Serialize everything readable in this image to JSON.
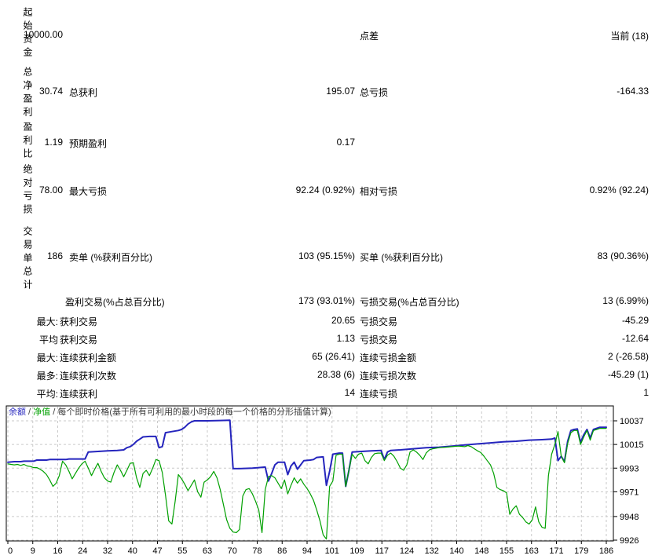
{
  "report": {
    "side_labels": [
      "起始资金",
      "总净盈利",
      "盈利比",
      "绝对亏损",
      "交易单总计"
    ],
    "rows": [
      {
        "v1": "10000.00",
        "l2": "点差",
        "v3": "当前 (18)"
      },
      {
        "v1": "30.74",
        "l1": "总获利",
        "v2": "195.07",
        "l2": "总亏损",
        "v3": "-164.33"
      },
      {
        "v1": "1.19",
        "l1": "预期盈利",
        "v2": "0.17"
      },
      {
        "v1": "78.00",
        "l1": "最大亏损",
        "v2": "92.24 (0.92%)",
        "l2": "相对亏损",
        "v3": "0.92% (92.24)"
      },
      {
        "v1": "186",
        "l1": "卖单 (%获利百分比)",
        "v2": "103 (95.15%)",
        "l2": "买单 (%获利百分比)",
        "v3": "83 (90.36%)"
      },
      {
        "l1": "盈利交易(%占总百分比)",
        "v2": "173 (93.01%)",
        "l2": "亏损交易(%占总百分比)",
        "v3": "13 (6.99%)"
      },
      {
        "p": "最大:",
        "l1": "获利交易",
        "v2": "20.65",
        "l2": "亏损交易",
        "v3": "-45.29"
      },
      {
        "p": "平均",
        "l1": "获利交易",
        "v2": "1.13",
        "l2": "亏损交易",
        "v3": "-12.64"
      },
      {
        "p": "最大:",
        "l1": "连续获利金额",
        "v2": "65 (26.41)",
        "l2": "连续亏损金额",
        "v3": "2 (-26.58)"
      },
      {
        "p": "最多:",
        "l1": "连续获利次数",
        "v2": "28.38 (6)",
        "l2": "连续亏损次数",
        "v3": "-45.29 (1)"
      },
      {
        "p": "平均:",
        "l1": "连续获利",
        "v2": "14",
        "l2": "连续亏损",
        "v3": "1"
      }
    ]
  },
  "chart_data": {
    "type": "line",
    "legend": {
      "balance": "余额",
      "sep": " / ",
      "equity": "净值",
      "caption": "每个即时价格(基于所有可利用的最小时段的每一个价格的分形插值计算)"
    },
    "grid": true,
    "grid_color": "#c9c9c9",
    "y_ticks": [
      10037,
      10015,
      9993,
      9971,
      9948,
      9926
    ],
    "x_ticks": [
      0,
      9,
      16,
      24,
      32,
      40,
      47,
      55,
      63,
      70,
      78,
      86,
      94,
      101,
      109,
      117,
      124,
      132,
      140,
      148,
      155,
      163,
      171,
      179,
      186
    ],
    "xlim": [
      0,
      186
    ],
    "ylim": [
      9925,
      10051
    ],
    "series": [
      {
        "name": "余额",
        "color": "#2525bd",
        "width": 2,
        "points": [
          [
            0,
            9998.5
          ],
          [
            2,
            9999
          ],
          [
            4,
            9999
          ],
          [
            5,
            9999.5
          ],
          [
            8,
            9999.5
          ],
          [
            9,
            10000.5
          ],
          [
            12,
            10000.5
          ],
          [
            13,
            10001
          ],
          [
            18,
            10001
          ],
          [
            19,
            10001.5
          ],
          [
            24,
            10001.5
          ],
          [
            25,
            10008
          ],
          [
            28,
            10008.5
          ],
          [
            31,
            10009
          ],
          [
            34,
            10009.5
          ],
          [
            36,
            10010
          ],
          [
            37,
            10012
          ],
          [
            38,
            10013
          ],
          [
            39,
            10015
          ],
          [
            40,
            10018
          ],
          [
            41,
            10020
          ],
          [
            42,
            10022
          ],
          [
            44,
            10022.5
          ],
          [
            46,
            10022.5
          ],
          [
            47,
            10012
          ],
          [
            48,
            10013
          ],
          [
            49,
            10026
          ],
          [
            51,
            10027
          ],
          [
            53,
            10028
          ],
          [
            54,
            10029
          ],
          [
            55,
            10031
          ],
          [
            56,
            10034
          ],
          [
            57,
            10036
          ],
          [
            58,
            10037
          ],
          [
            62,
            10037
          ],
          [
            66,
            10037.3
          ],
          [
            69,
            10037.5
          ],
          [
            70,
            9992.5
          ],
          [
            72,
            9992.5
          ],
          [
            76,
            9993
          ],
          [
            78,
            9993.5
          ],
          [
            80,
            9994
          ],
          [
            81,
            9981
          ],
          [
            82,
            9988
          ],
          [
            83,
            9996
          ],
          [
            84,
            9998.5
          ],
          [
            86,
            9998.5
          ],
          [
            87,
            9987
          ],
          [
            88,
            9995
          ],
          [
            89,
            9998.5
          ],
          [
            90,
            9992
          ],
          [
            91,
            9996
          ],
          [
            92,
            10000
          ],
          [
            94,
            10000.5
          ],
          [
            95,
            10001
          ],
          [
            96,
            10003
          ],
          [
            98,
            10003.5
          ],
          [
            99,
            9977
          ],
          [
            100,
            9990
          ],
          [
            101,
            10006
          ],
          [
            103,
            10007
          ],
          [
            104,
            10007
          ],
          [
            105,
            9976
          ],
          [
            106,
            9991
          ],
          [
            107,
            10008
          ],
          [
            110,
            10008.5
          ],
          [
            113,
            10009
          ],
          [
            116,
            10009.5
          ],
          [
            117,
            10001
          ],
          [
            118,
            10008
          ],
          [
            119,
            10009.5
          ],
          [
            122,
            10010
          ],
          [
            126,
            10011
          ],
          [
            130,
            10012
          ],
          [
            134,
            10012.5
          ],
          [
            138,
            10013.5
          ],
          [
            142,
            10014.5
          ],
          [
            146,
            10015.5
          ],
          [
            150,
            10016.5
          ],
          [
            154,
            10017.5
          ],
          [
            158,
            10018
          ],
          [
            162,
            10019
          ],
          [
            166,
            10019.5
          ],
          [
            169,
            10020
          ],
          [
            170,
            10021
          ],
          [
            171,
            10000
          ],
          [
            172,
            10004
          ],
          [
            173,
            9999
          ],
          [
            174,
            10018
          ],
          [
            175,
            10028
          ],
          [
            176,
            10029
          ],
          [
            177,
            10029.5
          ],
          [
            178,
            10017
          ],
          [
            179,
            10024
          ],
          [
            180,
            10029
          ],
          [
            181,
            10021
          ],
          [
            182,
            10029
          ],
          [
            183,
            10030
          ],
          [
            184,
            10031
          ],
          [
            185,
            10031
          ],
          [
            186,
            10031
          ]
        ]
      },
      {
        "name": "净值",
        "color": "#00a000",
        "width": 1.2,
        "points": [
          [
            0,
            9997
          ],
          [
            1,
            9996.5
          ],
          [
            2,
            9996
          ],
          [
            3,
            9996.5
          ],
          [
            4,
            9995.5
          ],
          [
            5,
            9996.5
          ],
          [
            6,
            9995
          ],
          [
            7,
            9994.5
          ],
          [
            8,
            9993.5
          ],
          [
            9,
            9993.5
          ],
          [
            10,
            9992
          ],
          [
            11,
            9990
          ],
          [
            12,
            9987
          ],
          [
            13,
            9982
          ],
          [
            14,
            9976
          ],
          [
            15,
            9979
          ],
          [
            16,
            9986
          ],
          [
            17,
            9999.5
          ],
          [
            18,
            9996
          ],
          [
            19,
            9990
          ],
          [
            20,
            9983
          ],
          [
            21,
            9988
          ],
          [
            22,
            9993
          ],
          [
            23,
            9997
          ],
          [
            24,
            9999.5
          ],
          [
            25,
            9993
          ],
          [
            26,
            9986
          ],
          [
            27,
            9992
          ],
          [
            28,
            9997.5
          ],
          [
            29,
            9990
          ],
          [
            30,
            9984
          ],
          [
            31,
            9981
          ],
          [
            32,
            9980
          ],
          [
            33,
            9989
          ],
          [
            34,
            9996
          ],
          [
            35,
            9991
          ],
          [
            36,
            9985
          ],
          [
            37,
            9991
          ],
          [
            38,
            9997.5
          ],
          [
            39,
            9998
          ],
          [
            40,
            9984
          ],
          [
            41,
            9975
          ],
          [
            42,
            9988
          ],
          [
            43,
            9991
          ],
          [
            44,
            9986
          ],
          [
            45,
            9993
          ],
          [
            46,
            10001
          ],
          [
            47,
            10000
          ],
          [
            48,
            9989
          ],
          [
            49,
            9968
          ],
          [
            50,
            9944
          ],
          [
            51,
            9941
          ],
          [
            52,
            9962
          ],
          [
            53,
            9987
          ],
          [
            54,
            9983
          ],
          [
            55,
            9978
          ],
          [
            56,
            9972
          ],
          [
            57,
            9977
          ],
          [
            58,
            9982
          ],
          [
            59,
            9971
          ],
          [
            60,
            9966
          ],
          [
            61,
            9980
          ],
          [
            62,
            9982
          ],
          [
            63,
            9985
          ],
          [
            64,
            9990
          ],
          [
            65,
            9984
          ],
          [
            66,
            9973
          ],
          [
            67,
            9959
          ],
          [
            68,
            9945
          ],
          [
            69,
            9937
          ],
          [
            70,
            9933.5
          ],
          [
            71,
            9933
          ],
          [
            72,
            9936
          ],
          [
            73,
            9967
          ],
          [
            74,
            9973
          ],
          [
            75,
            9974
          ],
          [
            76,
            9969
          ],
          [
            77,
            9962
          ],
          [
            78,
            9954
          ],
          [
            79,
            9933
          ],
          [
            80,
            9973
          ],
          [
            81,
            9985
          ],
          [
            82,
            9986
          ],
          [
            83,
            9984
          ],
          [
            84,
            9979
          ],
          [
            85,
            9974
          ],
          [
            86,
            9982
          ],
          [
            87,
            9969
          ],
          [
            88,
            9977
          ],
          [
            89,
            9984
          ],
          [
            90,
            9979
          ],
          [
            91,
            9983
          ],
          [
            92,
            9978
          ],
          [
            93,
            9974
          ],
          [
            94,
            9969
          ],
          [
            95,
            9963
          ],
          [
            96,
            9954
          ],
          [
            97,
            9944
          ],
          [
            98,
            9931
          ],
          [
            99,
            9927
          ],
          [
            100,
            9976
          ],
          [
            101,
            9981
          ],
          [
            102,
            10005
          ],
          [
            103,
            10006
          ],
          [
            104,
            10006
          ],
          [
            105,
            9976
          ],
          [
            106,
            9991
          ],
          [
            107,
            10006
          ],
          [
            108,
            10002
          ],
          [
            109,
            10006
          ],
          [
            110,
            10007
          ],
          [
            111,
            10000
          ],
          [
            112,
            9997
          ],
          [
            113,
            10003
          ],
          [
            114,
            10006.5
          ],
          [
            115,
            10007
          ],
          [
            116,
            10007
          ],
          [
            117,
            10000
          ],
          [
            118,
            10005
          ],
          [
            119,
            10007
          ],
          [
            120,
            10004
          ],
          [
            121,
            9999
          ],
          [
            122,
            9993
          ],
          [
            123,
            9991
          ],
          [
            124,
            9996
          ],
          [
            125,
            10008
          ],
          [
            126,
            10010
          ],
          [
            127,
            10008
          ],
          [
            128,
            10005
          ],
          [
            129,
            10001
          ],
          [
            130,
            10007
          ],
          [
            131,
            10010
          ],
          [
            132,
            10011
          ],
          [
            134,
            10012
          ],
          [
            136,
            10012.5
          ],
          [
            138,
            10013
          ],
          [
            140,
            10013.5
          ],
          [
            142,
            10013
          ],
          [
            143,
            10014
          ],
          [
            144,
            10013
          ],
          [
            145,
            10011
          ],
          [
            146,
            10009
          ],
          [
            147,
            10007.5
          ],
          [
            148,
            10004
          ],
          [
            149,
            10000
          ],
          [
            150,
            9996
          ],
          [
            151,
            9988
          ],
          [
            152,
            9975
          ],
          [
            153,
            9973
          ],
          [
            154,
            9972
          ],
          [
            155,
            9970
          ],
          [
            156,
            9950
          ],
          [
            157,
            9955
          ],
          [
            158,
            9958
          ],
          [
            159,
            9950
          ],
          [
            160,
            9947
          ],
          [
            161,
            9943
          ],
          [
            162,
            9941
          ],
          [
            163,
            9945
          ],
          [
            164,
            9957
          ],
          [
            165,
            9943
          ],
          [
            166,
            9938
          ],
          [
            167,
            9937
          ],
          [
            168,
            9986
          ],
          [
            169,
            10006
          ],
          [
            170,
            10015
          ],
          [
            171,
            10027
          ],
          [
            172,
            10004
          ],
          [
            173,
            9998
          ],
          [
            174,
            10016
          ],
          [
            175,
            10026
          ],
          [
            176,
            10028
          ],
          [
            177,
            10028
          ],
          [
            178,
            10015
          ],
          [
            179,
            10022
          ],
          [
            180,
            10028
          ],
          [
            181,
            10019
          ],
          [
            182,
            10028
          ],
          [
            183,
            10029
          ],
          [
            184,
            10030
          ],
          [
            185,
            10030
          ],
          [
            186,
            10030
          ]
        ]
      }
    ]
  }
}
